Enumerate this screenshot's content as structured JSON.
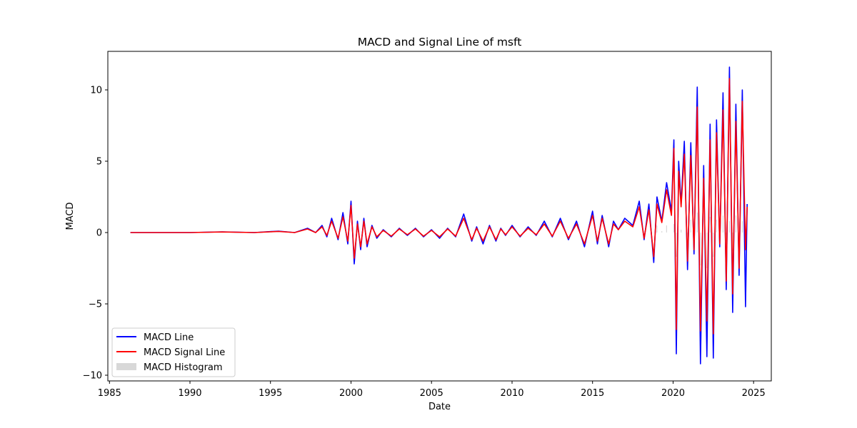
{
  "chart_data": {
    "type": "line",
    "title": "MACD and Signal Line of msft",
    "xlabel": "Date",
    "ylabel": "MACD",
    "xlim": [
      1984.9,
      2026.1
    ],
    "ylim": [
      -10.4,
      12.7
    ],
    "x_ticks": [
      1985,
      1990,
      1995,
      2000,
      2005,
      2010,
      2015,
      2020,
      2025
    ],
    "y_ticks": [
      -10,
      -5,
      0,
      5,
      10
    ],
    "y_tick_labels": [
      "−10",
      "−5",
      "0",
      "5",
      "10"
    ],
    "grid": false,
    "legend_position": "lower-left",
    "series": [
      {
        "name": "MACD Line",
        "color": "#0000ff",
        "x": [
          1986.3,
          1988.0,
          1990.0,
          1992.0,
          1994.0,
          1995.5,
          1996.5,
          1997.3,
          1997.8,
          1998.2,
          1998.5,
          1998.8,
          1999.2,
          1999.5,
          1999.8,
          2000.0,
          2000.2,
          2000.4,
          2000.6,
          2000.8,
          2001.0,
          2001.3,
          2001.6,
          2002.0,
          2002.5,
          2003.0,
          2003.5,
          2004.0,
          2004.5,
          2005.0,
          2005.5,
          2006.0,
          2006.5,
          2007.0,
          2007.5,
          2007.8,
          2008.2,
          2008.6,
          2009.0,
          2009.3,
          2009.6,
          2010.0,
          2010.5,
          2011.0,
          2011.5,
          2012.0,
          2012.5,
          2013.0,
          2013.5,
          2014.0,
          2014.5,
          2015.0,
          2015.3,
          2015.6,
          2016.0,
          2016.3,
          2016.6,
          2017.0,
          2017.5,
          2017.9,
          2018.2,
          2018.5,
          2018.8,
          2019.0,
          2019.3,
          2019.6,
          2019.9,
          2020.05,
          2020.2,
          2020.35,
          2020.5,
          2020.7,
          2020.9,
          2021.1,
          2021.3,
          2021.5,
          2021.7,
          2021.9,
          2022.1,
          2022.3,
          2022.5,
          2022.7,
          2022.9,
          2023.1,
          2023.3,
          2023.5,
          2023.7,
          2023.9,
          2024.1,
          2024.3,
          2024.5,
          2024.6
        ],
        "y": [
          0.0,
          0.0,
          0.0,
          0.05,
          0.0,
          0.1,
          0.0,
          0.3,
          0.0,
          0.5,
          -0.3,
          1.0,
          -0.5,
          1.4,
          -0.8,
          2.2,
          -2.2,
          0.8,
          -1.2,
          1.0,
          -1.0,
          0.5,
          -0.4,
          0.2,
          -0.3,
          0.3,
          -0.2,
          0.3,
          -0.3,
          0.2,
          -0.4,
          0.3,
          -0.3,
          1.3,
          -0.6,
          0.4,
          -0.8,
          0.5,
          -0.6,
          0.3,
          -0.2,
          0.5,
          -0.3,
          0.4,
          -0.2,
          0.8,
          -0.3,
          1.0,
          -0.5,
          0.8,
          -1.0,
          1.5,
          -0.8,
          1.2,
          -1.0,
          0.8,
          0.2,
          1.0,
          0.5,
          2.2,
          -0.5,
          2.0,
          -2.1,
          2.5,
          0.8,
          3.5,
          1.5,
          6.5,
          -8.5,
          5.0,
          2.0,
          6.4,
          -2.6,
          6.3,
          -1.5,
          10.2,
          -9.2,
          4.7,
          -8.7,
          7.6,
          -8.8,
          7.9,
          -1.0,
          9.8,
          -4.0,
          11.6,
          -5.6,
          9.0,
          -3.0,
          10.0,
          -5.2,
          2.0
        ]
      },
      {
        "name": "MACD Signal Line",
        "color": "#ff0000",
        "x": [
          1986.3,
          1988.0,
          1990.0,
          1992.0,
          1994.0,
          1995.5,
          1996.5,
          1997.3,
          1997.8,
          1998.2,
          1998.5,
          1998.8,
          1999.2,
          1999.5,
          1999.8,
          2000.0,
          2000.2,
          2000.4,
          2000.6,
          2000.8,
          2001.0,
          2001.3,
          2001.6,
          2002.0,
          2002.5,
          2003.0,
          2003.5,
          2004.0,
          2004.5,
          2005.0,
          2005.5,
          2006.0,
          2006.5,
          2007.0,
          2007.5,
          2007.8,
          2008.2,
          2008.6,
          2009.0,
          2009.3,
          2009.6,
          2010.0,
          2010.5,
          2011.0,
          2011.5,
          2012.0,
          2012.5,
          2013.0,
          2013.5,
          2014.0,
          2014.5,
          2015.0,
          2015.3,
          2015.6,
          2016.0,
          2016.3,
          2016.6,
          2017.0,
          2017.5,
          2017.9,
          2018.2,
          2018.5,
          2018.8,
          2019.0,
          2019.3,
          2019.6,
          2019.9,
          2020.05,
          2020.2,
          2020.35,
          2020.5,
          2020.7,
          2020.9,
          2021.1,
          2021.3,
          2021.5,
          2021.7,
          2021.9,
          2022.1,
          2022.3,
          2022.5,
          2022.7,
          2022.9,
          2023.1,
          2023.3,
          2023.5,
          2023.7,
          2023.9,
          2024.1,
          2024.3,
          2024.5,
          2024.6
        ],
        "y": [
          0.0,
          0.0,
          0.0,
          0.04,
          0.0,
          0.08,
          0.0,
          0.25,
          0.0,
          0.4,
          -0.2,
          0.8,
          -0.4,
          1.1,
          -0.6,
          1.9,
          -1.8,
          0.6,
          -1.0,
          0.8,
          -0.8,
          0.4,
          -0.3,
          0.15,
          -0.25,
          0.25,
          -0.15,
          0.25,
          -0.25,
          0.15,
          -0.3,
          0.25,
          -0.25,
          1.0,
          -0.5,
          0.3,
          -0.6,
          0.4,
          -0.5,
          0.25,
          -0.15,
          0.4,
          -0.25,
          0.3,
          -0.15,
          0.6,
          -0.25,
          0.8,
          -0.4,
          0.6,
          -0.8,
          1.2,
          -0.6,
          1.0,
          -0.8,
          0.6,
          0.2,
          0.8,
          0.4,
          1.8,
          -0.4,
          1.6,
          -1.7,
          2.0,
          0.7,
          3.0,
          1.2,
          5.9,
          -6.8,
          4.3,
          1.8,
          5.5,
          -2.0,
          5.4,
          -1.2,
          8.8,
          -6.9,
          3.8,
          -6.2,
          6.5,
          -7.1,
          7.0,
          -0.8,
          8.6,
          -3.4,
          10.8,
          -4.3,
          7.8,
          -2.5,
          9.2,
          -1.2,
          1.8
        ]
      },
      {
        "name": "MACD Histogram",
        "color": "#d8d8d8",
        "style": "bar",
        "x": [
          2019.0,
          2019.3,
          2019.6,
          2020.05,
          2020.2,
          2020.5,
          2020.9,
          2021.1,
          2021.5,
          2021.7,
          2022.1,
          2022.3,
          2022.5,
          2022.7,
          2023.1,
          2023.3,
          2023.5,
          2023.7,
          2023.9,
          2024.1,
          2024.3,
          2024.5
        ],
        "y": [
          0.5,
          0.1,
          0.5,
          0.6,
          -1.7,
          0.2,
          -0.6,
          0.9,
          1.4,
          -2.3,
          -2.5,
          1.1,
          -1.7,
          0.9,
          1.2,
          -0.6,
          0.8,
          -1.3,
          1.2,
          -0.5,
          0.8,
          -1.0
        ]
      }
    ]
  }
}
